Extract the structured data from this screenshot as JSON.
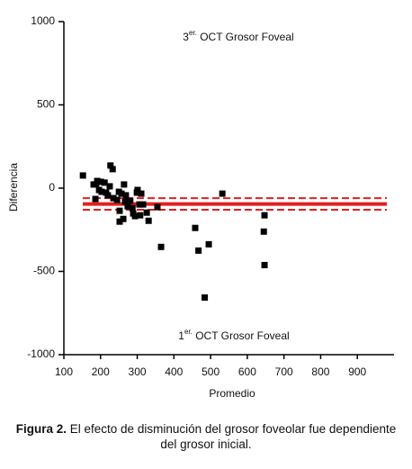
{
  "chart_data": {
    "type": "scatter",
    "annotations": [
      {
        "number": "3",
        "superscript": "er.",
        "text": " OCT Grosor Foveal"
      },
      {
        "number": "1",
        "superscript": "er.",
        "text": " OCT Grosor Foveal"
      }
    ],
    "x_label": "Promedio",
    "y_label": "Diferencia",
    "xlim": [
      100,
      1000
    ],
    "xticks": [
      100,
      200,
      300,
      400,
      500,
      600,
      700,
      800,
      900
    ],
    "ylim": [
      -1000,
      1000
    ],
    "yticks": [
      1000,
      500,
      0,
      -500,
      -1000
    ],
    "color": "#000000",
    "x": [
      152,
      181,
      188,
      191,
      196,
      201,
      203,
      186,
      211,
      215,
      220,
      225,
      227,
      233,
      235,
      245,
      250,
      252,
      252,
      257,
      262,
      264,
      267,
      269,
      274,
      281,
      287,
      289,
      294,
      299,
      301,
      306,
      308,
      311,
      316,
      326,
      331,
      355,
      365,
      458,
      467,
      484,
      495,
      532,
      645,
      647,
      647
    ],
    "values": [
      76,
      22,
      22,
      43,
      -11,
      38,
      -22,
      -65,
      33,
      -27,
      -43,
      11,
      136,
      114,
      -60,
      -71,
      -22,
      -136,
      -201,
      -33,
      -185,
      22,
      -81,
      -43,
      -109,
      -76,
      -120,
      -152,
      -168,
      -27,
      -11,
      -98,
      -163,
      -33,
      -98,
      -147,
      -196,
      -114,
      -353,
      -239,
      -375,
      -657,
      -337,
      -33,
      -261,
      -163,
      -462
    ],
    "reference_lines": [
      {
        "value": -95,
        "style": "solid"
      },
      {
        "value": -60,
        "style": "dashed"
      },
      {
        "value": -130,
        "style": "dashed"
      }
    ],
    "reference_color": "#e02020"
  },
  "caption": {
    "label": "Figura 2.",
    "text": " El efecto de disminución del grosor foveolar fue dependiente del grosor inicial."
  }
}
